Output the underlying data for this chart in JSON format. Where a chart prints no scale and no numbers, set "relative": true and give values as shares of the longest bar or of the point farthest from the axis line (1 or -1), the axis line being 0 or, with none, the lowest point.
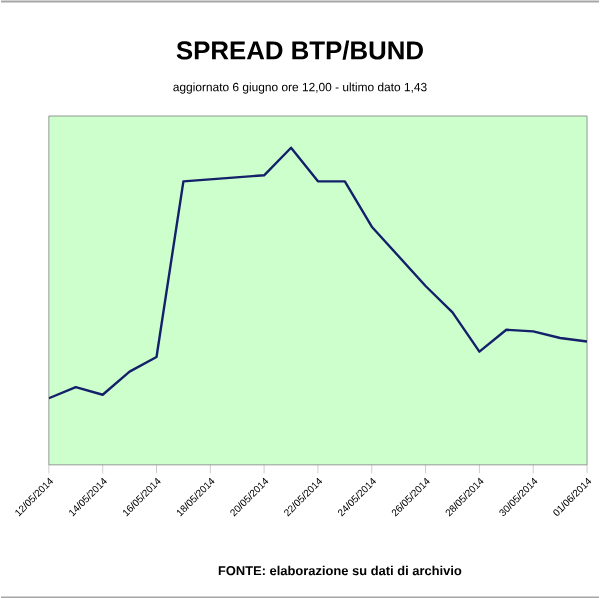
{
  "chart_data": {
    "type": "line",
    "title": "SPREAD BTP/BUND",
    "subtitle": "aggiornato 6 giugno ore 12,00 - ultimo dato 1,43",
    "relative": true,
    "x": [
      "2014-05-12",
      "2014-05-13",
      "2014-05-14",
      "2014-05-15",
      "2014-05-16",
      "2014-05-17",
      "2014-05-20",
      "2014-05-21",
      "2014-05-22",
      "2014-05-23",
      "2014-05-24",
      "2014-05-26",
      "2014-05-27",
      "2014-05-28",
      "2014-05-29",
      "2014-05-30",
      "2014-05-31",
      "2014-06-01"
    ],
    "series": [
      {
        "color": "#14206a",
        "values": [
          0.21,
          0.245,
          0.221,
          0.294,
          0.34,
          0.894,
          0.913,
          1.0,
          0.894,
          0.894,
          0.751,
          0.564,
          0.481,
          0.357,
          0.426,
          0.421,
          0.4,
          0.389
        ]
      }
    ],
    "xlim": [
      "2014-05-12",
      "2014-06-01"
    ],
    "xticks": [
      {
        "value": "2014-05-12",
        "label": "12/05/2014"
      },
      {
        "value": "2014-05-14",
        "label": "14/05/2014"
      },
      {
        "value": "2014-05-16",
        "label": "16/05/2014"
      },
      {
        "value": "2014-05-18",
        "label": "18/05/2014"
      },
      {
        "value": "2014-05-20",
        "label": "20/05/2014"
      },
      {
        "value": "2014-05-22",
        "label": "22/05/2014"
      },
      {
        "value": "2014-05-24",
        "label": "24/05/2014"
      },
      {
        "value": "2014-05-26",
        "label": "26/05/2014"
      },
      {
        "value": "2014-05-28",
        "label": "28/05/2014"
      },
      {
        "value": "2014-05-30",
        "label": "30/05/2014"
      },
      {
        "value": "2014-06-01",
        "label": "01/06/2014"
      }
    ],
    "tick_labels": "x",
    "marker": "none",
    "line_style": "solid",
    "annotations": [
      "FONTE: elaborazione su dati di archivio"
    ]
  }
}
